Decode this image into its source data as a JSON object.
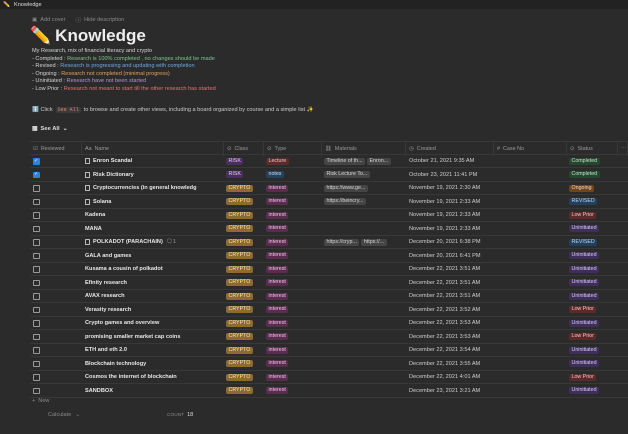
{
  "window": {
    "title": "Knowledge"
  },
  "cover_actions": {
    "add_cover": "Add cover",
    "hide_description": "Hide description"
  },
  "page": {
    "title": "Knowledge",
    "emoji": "✏️"
  },
  "description": {
    "intro": "My Research, mix of financial literacy and crypto",
    "lines": [
      {
        "label": "- Completed :",
        "text": " Research is 100% completed , no changes should be made",
        "color": "g"
      },
      {
        "label": "- Revised :",
        "text": " Research is progressing and updating with completion",
        "color": "b"
      },
      {
        "label": "- Ongoing :",
        "text": " Research not completed (minimal progress)",
        "color": "o"
      },
      {
        "label": "- Uninitiated :",
        "text": " Research have not been started",
        "color": "p"
      },
      {
        "label": "- Low Prior :",
        "text": " Research not meant to start till the other research has started",
        "color": "r"
      }
    ]
  },
  "click_line": {
    "prefix": "ℹ️ Click",
    "code": "See All",
    "suffix": "to browse and create other views, including a board organized by course and a simple list ✨"
  },
  "view": {
    "label": "See All"
  },
  "columns": {
    "reviewed": "Reviewed",
    "name": "Name",
    "class": "Class",
    "type": "Type",
    "materials": "Materials",
    "created": "Created",
    "case": "Case No",
    "status": "Status"
  },
  "rows": [
    {
      "checked": true,
      "name": "Enron Scandal",
      "doc": true,
      "class": "RISK",
      "type": "Lecture",
      "materials": [
        "Timeline of th...",
        "Enron..."
      ],
      "created": "October 21, 2021 9:35 AM",
      "status": "Completed"
    },
    {
      "checked": true,
      "name": "Risk Dictionary",
      "doc": true,
      "class": "RISK",
      "type": "notes",
      "materials": [
        "Risk Lecture To..."
      ],
      "created": "October 23, 2021 11:41 PM",
      "status": "Completed"
    },
    {
      "checked": false,
      "name": "Cryptocurrencies (in general knowledg",
      "doc": true,
      "class": "CRYPTO",
      "type": "interest",
      "materials": [
        "https://www.ge..."
      ],
      "created": "November 19, 2021 2:30 AM",
      "status": "Ongoing"
    },
    {
      "checked": false,
      "name": "Solana",
      "doc": true,
      "class": "CRYPTO",
      "type": "interest",
      "materials": [
        "https://beincry..."
      ],
      "created": "November 19, 2021 2:33 AM",
      "status": "REVISED"
    },
    {
      "checked": false,
      "name": "Kadena",
      "doc": false,
      "class": "CRYPTO",
      "type": "interest",
      "materials": [],
      "created": "November 19, 2021 2:33 AM",
      "status": "Low Prior"
    },
    {
      "checked": false,
      "name": "MANA",
      "doc": false,
      "class": "CRYPTO",
      "type": "interest",
      "materials": [],
      "created": "November 19, 2021 2:33 AM",
      "status": "Uninitiated"
    },
    {
      "checked": false,
      "name": "POLKADOT (PARACHAIN)",
      "doc": true,
      "comments": "1",
      "class": "CRYPTO",
      "type": "interest",
      "materials": [
        "https://cryp...",
        "https://..."
      ],
      "created": "December 20, 2021 6:38 PM",
      "status": "REVISED"
    },
    {
      "checked": false,
      "name": "GALA and games",
      "doc": false,
      "class": "CRYPTO",
      "type": "interest",
      "materials": [],
      "created": "December 20, 2021 6:41 PM",
      "status": "Uninitiated"
    },
    {
      "checked": false,
      "name": "Kusama a cousin of polkadot",
      "doc": false,
      "class": "CRYPTO",
      "type": "interest",
      "materials": [],
      "created": "December 22, 2021 3:51 AM",
      "status": "Uninitiated"
    },
    {
      "checked": false,
      "name": "Efinity research",
      "doc": false,
      "class": "CRYPTO",
      "type": "interest",
      "materials": [],
      "created": "December 22, 2021 3:51 AM",
      "status": "Uninitiated"
    },
    {
      "checked": false,
      "name": "AVAX research",
      "doc": false,
      "class": "CRYPTO",
      "type": "interest",
      "materials": [],
      "created": "December 22, 2021 3:51 AM",
      "status": "Uninitiated"
    },
    {
      "checked": false,
      "name": "Verasity research",
      "doc": false,
      "class": "CRYPTO",
      "type": "interest",
      "materials": [],
      "created": "December 22, 2021 3:52 AM",
      "status": "Low Prior"
    },
    {
      "checked": false,
      "name": "Crypto games and overview",
      "doc": false,
      "class": "CRYPTO",
      "type": "interest",
      "materials": [],
      "created": "December 22, 2021 3:53 AM",
      "status": "Uninitiated"
    },
    {
      "checked": false,
      "name": "promising smaller market cap coins",
      "doc": false,
      "class": "CRYPTO",
      "type": "interest",
      "materials": [],
      "created": "December 22, 2021 3:53 AM",
      "status": "Low Prior"
    },
    {
      "checked": false,
      "name": "ETH and eth 2.0",
      "doc": false,
      "class": "CRYPTO",
      "type": "interest",
      "materials": [],
      "created": "December 22, 2021 3:54 AM",
      "status": "Uninitiated"
    },
    {
      "checked": false,
      "name": "Blockchain technology",
      "doc": false,
      "class": "CRYPTO",
      "type": "interest",
      "materials": [],
      "created": "December 22, 2021 3:55 AM",
      "status": "Uninitiated"
    },
    {
      "checked": false,
      "name": "Cosmos the internet of blockchain",
      "doc": false,
      "class": "CRYPTO",
      "type": "interest",
      "materials": [],
      "created": "December 22, 2021 4:01 AM",
      "status": "Low Prior"
    },
    {
      "checked": false,
      "name": "SANDBOX",
      "doc": false,
      "class": "CRYPTO",
      "type": "interest",
      "materials": [],
      "created": "December 23, 2021 3:21 AM",
      "status": "Uninitiated"
    }
  ],
  "footer": {
    "new": "New",
    "calculate": "Calculate",
    "count_label": "COUNT",
    "count": "18"
  }
}
